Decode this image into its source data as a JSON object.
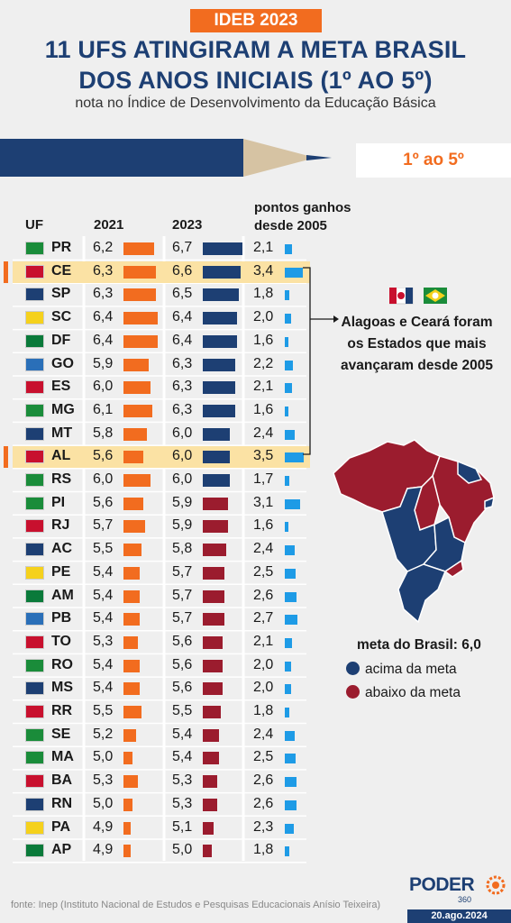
{
  "header": {
    "tag": "IDEB 2023",
    "title_line1": "11 UFS ATINGIRAM A META BRASIL",
    "title_line2": "DOS ANOS INICIAIS (1º AO 5º)",
    "subtitle": "nota no Índice de Desenvolvimento da Educação Básica",
    "period": "1º ao 5º"
  },
  "colors": {
    "orange": "#f26c1f",
    "navy": "#1d3f73",
    "above": "#1d3f73",
    "below": "#9b1c2e",
    "gain": "#1e9be6",
    "highlight": "#fbe2a4"
  },
  "callout": {
    "line1": "Alagoas e Ceará foram",
    "line2": "os Estados que mais",
    "line3": "avançaram desde 2005"
  },
  "legend": {
    "meta": "meta do Brasil: 6,0",
    "above": "acima da meta",
    "below": "abaixo da meta"
  },
  "footer": {
    "source": "fonte: Inep (Instituto Nacional de Estudos e Pesquisas Educacionais Anísio Teixeira)",
    "brand": "PODER",
    "brand_sub": "360",
    "date": "20.ago.2024"
  },
  "chart_data": {
    "type": "table",
    "columns": [
      "UF",
      "2021",
      "2023",
      "pontos ganhos desde 2005"
    ],
    "meta": 6.0,
    "rows": [
      {
        "uf": "PR",
        "v2021": "6,2",
        "v2023": "6,7",
        "gain": "2,1",
        "n2021": 6.2,
        "n2023": 6.7,
        "ngain": 2.1,
        "highlight": false
      },
      {
        "uf": "CE",
        "v2021": "6,3",
        "v2023": "6,6",
        "gain": "3,4",
        "n2021": 6.3,
        "n2023": 6.6,
        "ngain": 3.4,
        "highlight": true
      },
      {
        "uf": "SP",
        "v2021": "6,3",
        "v2023": "6,5",
        "gain": "1,8",
        "n2021": 6.3,
        "n2023": 6.5,
        "ngain": 1.8,
        "highlight": false
      },
      {
        "uf": "SC",
        "v2021": "6,4",
        "v2023": "6,4",
        "gain": "2,0",
        "n2021": 6.4,
        "n2023": 6.4,
        "ngain": 2.0,
        "highlight": false
      },
      {
        "uf": "DF",
        "v2021": "6,4",
        "v2023": "6,4",
        "gain": "1,6",
        "n2021": 6.4,
        "n2023": 6.4,
        "ngain": 1.6,
        "highlight": false
      },
      {
        "uf": "GO",
        "v2021": "5,9",
        "v2023": "6,3",
        "gain": "2,2",
        "n2021": 5.9,
        "n2023": 6.3,
        "ngain": 2.2,
        "highlight": false
      },
      {
        "uf": "ES",
        "v2021": "6,0",
        "v2023": "6,3",
        "gain": "2,1",
        "n2021": 6.0,
        "n2023": 6.3,
        "ngain": 2.1,
        "highlight": false
      },
      {
        "uf": "MG",
        "v2021": "6,1",
        "v2023": "6,3",
        "gain": "1,6",
        "n2021": 6.1,
        "n2023": 6.3,
        "ngain": 1.6,
        "highlight": false
      },
      {
        "uf": "MT",
        "v2021": "5,8",
        "v2023": "6,0",
        "gain": "2,4",
        "n2021": 5.8,
        "n2023": 6.0,
        "ngain": 2.4,
        "highlight": false
      },
      {
        "uf": "AL",
        "v2021": "5,6",
        "v2023": "6,0",
        "gain": "3,5",
        "n2021": 5.6,
        "n2023": 6.0,
        "ngain": 3.5,
        "highlight": true
      },
      {
        "uf": "RS",
        "v2021": "6,0",
        "v2023": "6,0",
        "gain": "1,7",
        "n2021": 6.0,
        "n2023": 6.0,
        "ngain": 1.7,
        "highlight": false
      },
      {
        "uf": "PI",
        "v2021": "5,6",
        "v2023": "5,9",
        "gain": "3,1",
        "n2021": 5.6,
        "n2023": 5.9,
        "ngain": 3.1,
        "highlight": false
      },
      {
        "uf": "RJ",
        "v2021": "5,7",
        "v2023": "5,9",
        "gain": "1,6",
        "n2021": 5.7,
        "n2023": 5.9,
        "ngain": 1.6,
        "highlight": false
      },
      {
        "uf": "AC",
        "v2021": "5,5",
        "v2023": "5,8",
        "gain": "2,4",
        "n2021": 5.5,
        "n2023": 5.8,
        "ngain": 2.4,
        "highlight": false
      },
      {
        "uf": "PE",
        "v2021": "5,4",
        "v2023": "5,7",
        "gain": "2,5",
        "n2021": 5.4,
        "n2023": 5.7,
        "ngain": 2.5,
        "highlight": false
      },
      {
        "uf": "AM",
        "v2021": "5,4",
        "v2023": "5,7",
        "gain": "2,6",
        "n2021": 5.4,
        "n2023": 5.7,
        "ngain": 2.6,
        "highlight": false
      },
      {
        "uf": "PB",
        "v2021": "5,4",
        "v2023": "5,7",
        "gain": "2,7",
        "n2021": 5.4,
        "n2023": 5.7,
        "ngain": 2.7,
        "highlight": false
      },
      {
        "uf": "TO",
        "v2021": "5,3",
        "v2023": "5,6",
        "gain": "2,1",
        "n2021": 5.3,
        "n2023": 5.6,
        "ngain": 2.1,
        "highlight": false
      },
      {
        "uf": "RO",
        "v2021": "5,4",
        "v2023": "5,6",
        "gain": "2,0",
        "n2021": 5.4,
        "n2023": 5.6,
        "ngain": 2.0,
        "highlight": false
      },
      {
        "uf": "MS",
        "v2021": "5,4",
        "v2023": "5,6",
        "gain": "2,0",
        "n2021": 5.4,
        "n2023": 5.6,
        "ngain": 2.0,
        "highlight": false
      },
      {
        "uf": "RR",
        "v2021": "5,5",
        "v2023": "5,5",
        "gain": "1,8",
        "n2021": 5.5,
        "n2023": 5.5,
        "ngain": 1.8,
        "highlight": false
      },
      {
        "uf": "SE",
        "v2021": "5,2",
        "v2023": "5,4",
        "gain": "2,4",
        "n2021": 5.2,
        "n2023": 5.4,
        "ngain": 2.4,
        "highlight": false
      },
      {
        "uf": "MA",
        "v2021": "5,0",
        "v2023": "5,4",
        "gain": "2,5",
        "n2021": 5.0,
        "n2023": 5.4,
        "ngain": 2.5,
        "highlight": false
      },
      {
        "uf": "BA",
        "v2021": "5,3",
        "v2023": "5,3",
        "gain": "2,6",
        "n2021": 5.3,
        "n2023": 5.3,
        "ngain": 2.6,
        "highlight": false
      },
      {
        "uf": "RN",
        "v2021": "5,0",
        "v2023": "5,3",
        "gain": "2,6",
        "n2021": 5.0,
        "n2023": 5.3,
        "ngain": 2.6,
        "highlight": false
      },
      {
        "uf": "PA",
        "v2021": "4,9",
        "v2023": "5,1",
        "gain": "2,3",
        "n2021": 4.9,
        "n2023": 5.1,
        "ngain": 2.3,
        "highlight": false
      },
      {
        "uf": "AP",
        "v2021": "4,9",
        "v2023": "5,0",
        "gain": "1,8",
        "n2021": 4.9,
        "n2023": 5.0,
        "ngain": 1.8,
        "highlight": false
      }
    ]
  }
}
